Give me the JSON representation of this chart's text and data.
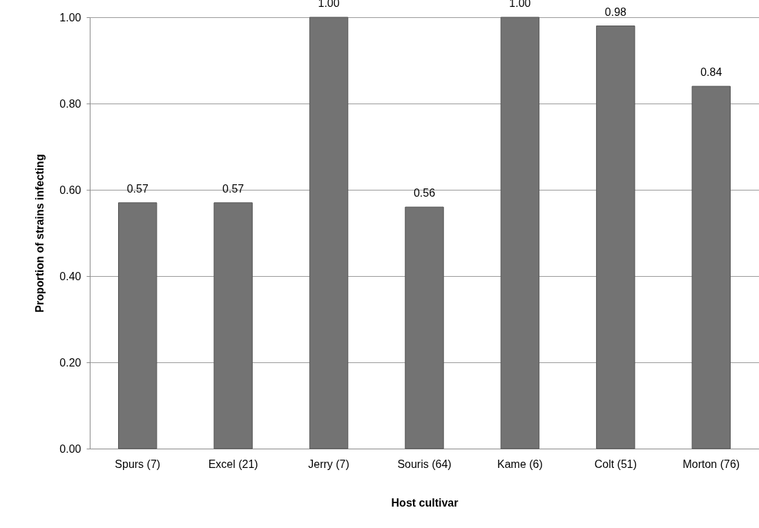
{
  "chart_data": {
    "type": "bar",
    "xlabel": "Host cultivar",
    "ylabel": "Proportion of strains infecting",
    "categories": [
      "Spurs (7)",
      "Excel (21)",
      "Jerry (7)",
      "Souris (64)",
      "Kame (6)",
      "Colt (51)",
      "Morton (76)"
    ],
    "values": [
      0.57,
      0.57,
      1.0,
      0.56,
      1.0,
      0.98,
      0.84
    ],
    "value_labels": [
      "0.57",
      "0.57",
      "1.00",
      "0.56",
      "1.00",
      "0.98",
      "0.84"
    ],
    "color": "#737373",
    "ylim": [
      0,
      1
    ],
    "yticks": [
      {
        "value": 0,
        "label": "0.00"
      },
      {
        "value": 0.2,
        "label": "0.20"
      },
      {
        "value": 0.4,
        "label": "0.40"
      },
      {
        "value": 0.6,
        "label": "0.60"
      },
      {
        "value": 0.8,
        "label": "0.80"
      },
      {
        "value": 1,
        "label": "1.00"
      }
    ],
    "grid": "y"
  }
}
